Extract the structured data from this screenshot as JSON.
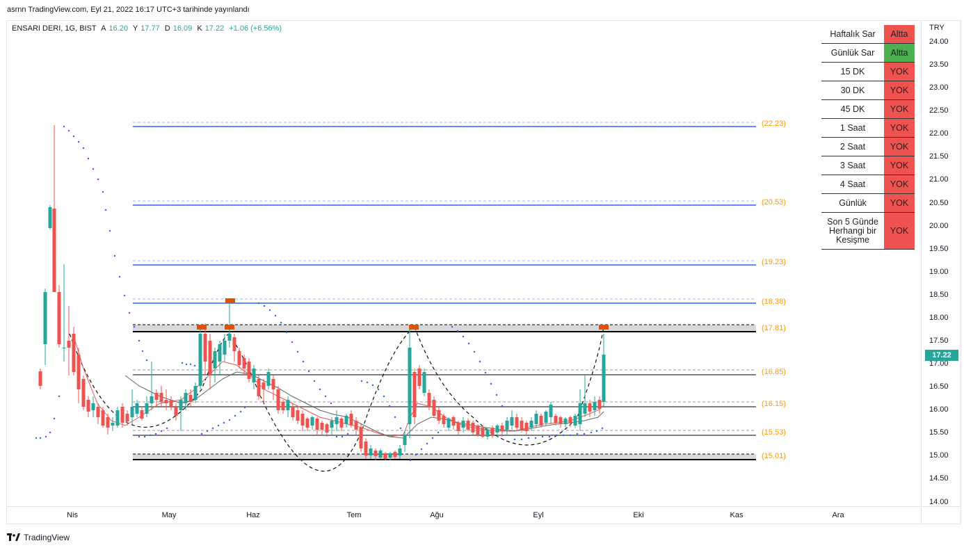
{
  "header": {
    "published": "asrnn TradingView.com, Eyl 21, 2022 16:17 UTC+3 tarihinde yayınlandı"
  },
  "legend": {
    "symbol": "ENSARI DERI, 1G, BIST",
    "o_label": "A",
    "o_value": "16.20",
    "h_label": "Y",
    "h_value": "17.77",
    "l_label": "D",
    "l_value": "16.09",
    "c_label": "K",
    "c_value": "17.22",
    "change": "+1.06 (+6.56%)"
  },
  "axis": {
    "currency": "TRY",
    "y_ticks": [
      "24.00",
      "23.50",
      "23.00",
      "22.50",
      "22.00",
      "21.50",
      "21.00",
      "20.50",
      "20.00",
      "19.50",
      "19.00",
      "18.50",
      "18.00",
      "17.50",
      "17.00",
      "16.50",
      "16.00",
      "15.50",
      "15.00",
      "14.50",
      "14.00"
    ],
    "x_ticks": [
      "Nis",
      "May",
      "Haz",
      "Tem",
      "Ağu",
      "Eyl",
      "Eki",
      "Kas",
      "Ara"
    ],
    "last_price": "17.22"
  },
  "levels": [
    "(22.23)",
    "(20.53)",
    "(19.23)",
    "(18.38)",
    "(17.81)",
    "(16.85)",
    "(16.15)",
    "(15.53)",
    "(15.01)"
  ],
  "status_table": {
    "rows": [
      {
        "name": "Haftalık Sar",
        "status": "Altta",
        "color": "#ef5350"
      },
      {
        "name": "Günlük Sar",
        "status": "Altta",
        "color": "#4caf50"
      },
      {
        "name": "15 DK",
        "status": "YOK",
        "color": "#ef5350"
      },
      {
        "name": "30 DK",
        "status": "YOK",
        "color": "#ef5350"
      },
      {
        "name": "45 DK",
        "status": "YOK",
        "color": "#ef5350"
      },
      {
        "name": "1 Saat",
        "status": "YOK",
        "color": "#ef5350"
      },
      {
        "name": "2 Saat",
        "status": "YOK",
        "color": "#ef5350"
      },
      {
        "name": "3 Saat",
        "status": "YOK",
        "color": "#ef5350"
      },
      {
        "name": "4 Saat",
        "status": "YOK",
        "color": "#ef5350"
      },
      {
        "name": "Günlük",
        "status": "YOK",
        "color": "#ef5350"
      },
      {
        "name": "Son 5 Günde Herhangi bir Kesişme",
        "status": "YOK",
        "color": "#ef5350"
      }
    ]
  },
  "colors": {
    "up": "#26a69a",
    "down": "#ef5350",
    "level_blue": "#5b8def",
    "level_label": "#ff9800",
    "marker": "#e65100",
    "sar": "#2962ff"
  },
  "brand": "TradingView"
}
